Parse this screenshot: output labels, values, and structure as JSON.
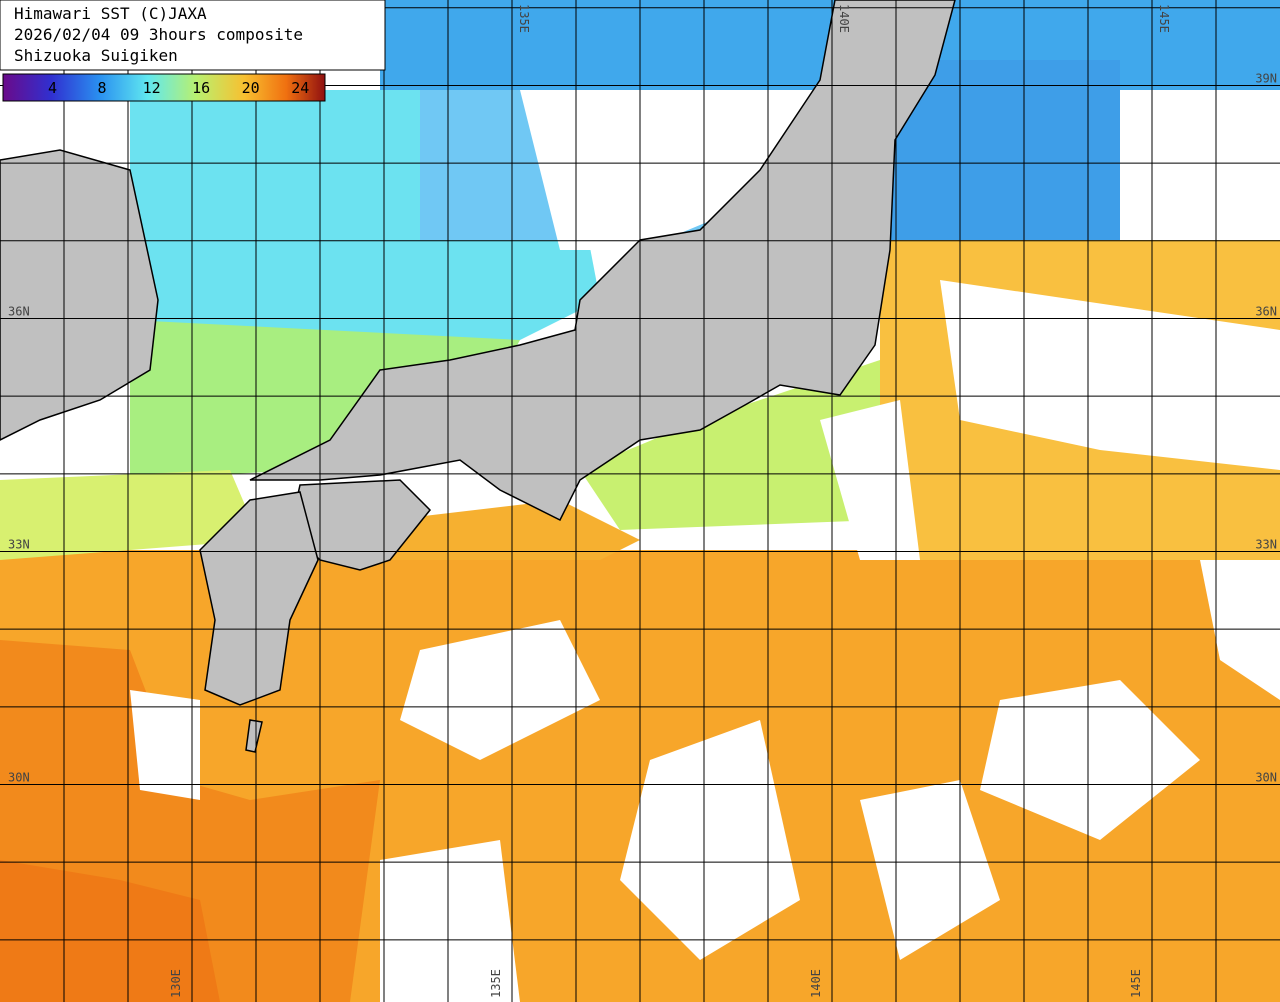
{
  "header": {
    "lines": [
      "Himawari SST (C)JAXA",
      "2026/02/04 09 3hours composite",
      "Shizuoka Suigiken"
    ]
  },
  "colorbar": {
    "lim": [
      0,
      26
    ],
    "ticks": [
      4,
      8,
      12,
      16,
      20,
      24
    ]
  },
  "map": {
    "lonlim": [
      127,
      147
    ],
    "latlim": [
      27.2,
      40.1
    ],
    "lon_lines": [
      128,
      129,
      130,
      131,
      132,
      133,
      134,
      135,
      136,
      137,
      138,
      139,
      140,
      141,
      142,
      143,
      144,
      145,
      146
    ],
    "lat_lines": [
      28,
      29,
      30,
      31,
      32,
      33,
      34,
      35,
      36,
      37,
      38,
      39,
      40
    ],
    "lon_labels_top": [
      {
        "value": 135,
        "label": "135E"
      },
      {
        "value": 140,
        "label": "140E"
      },
      {
        "value": 145,
        "label": "145E"
      }
    ],
    "lon_labels_bottom": [
      {
        "value": 130,
        "label": "130E"
      },
      {
        "value": 135,
        "label": "135E"
      },
      {
        "value": 140,
        "label": "140E"
      },
      {
        "value": 145,
        "label": "145E"
      }
    ],
    "lat_labels_right": [
      {
        "value": 39,
        "label": "39N"
      },
      {
        "value": 36,
        "label": "36N"
      },
      {
        "value": 33,
        "label": "33N"
      },
      {
        "value": 30,
        "label": "30N"
      }
    ],
    "lat_labels_left": [
      {
        "value": 36,
        "label": "36N"
      },
      {
        "value": 33,
        "label": "33N"
      },
      {
        "value": 30,
        "label": "30N"
      }
    ]
  }
}
